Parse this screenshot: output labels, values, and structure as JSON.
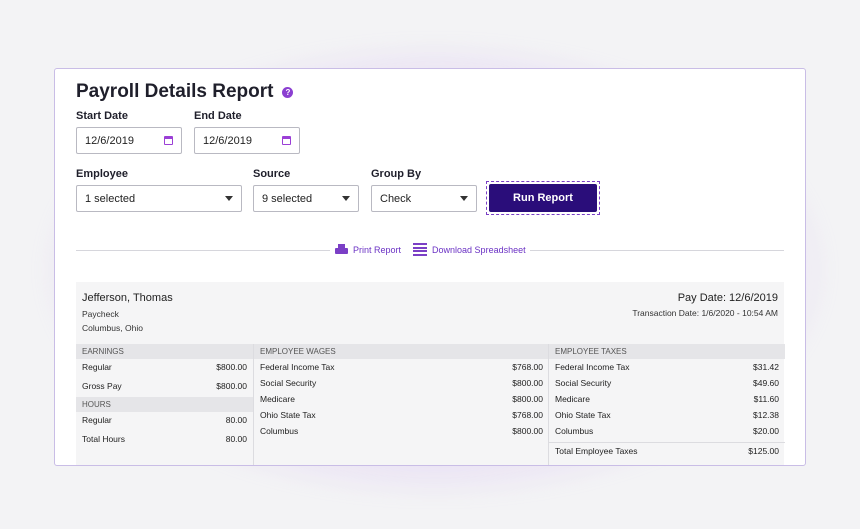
{
  "page": {
    "title": "Payroll Details Report"
  },
  "filters": {
    "start_date": {
      "label": "Start Date",
      "value": "12/6/2019"
    },
    "end_date": {
      "label": "End Date",
      "value": "12/6/2019"
    },
    "employee": {
      "label": "Employee",
      "value": "1 selected"
    },
    "source": {
      "label": "Source",
      "value": "9 selected"
    },
    "group_by": {
      "label": "Group By",
      "value": "Check"
    },
    "run_label": "Run Report"
  },
  "actions": {
    "print": "Print Report",
    "download": "Download Spreadsheet"
  },
  "report": {
    "employee_name": "Jefferson, Thomas",
    "type": "Paycheck",
    "location": "Columbus, Ohio",
    "pay_date": "Pay Date: 12/6/2019",
    "transaction_date": "Transaction Date: 1/6/2020 - 10:54 AM",
    "earnings": {
      "header": "EARNINGS",
      "rows": [
        {
          "label": "Regular",
          "value": "$800.00"
        },
        {
          "label": "Gross Pay",
          "value": "$800.00"
        }
      ]
    },
    "hours": {
      "header": "HOURS",
      "rows": [
        {
          "label": "Regular",
          "value": "80.00"
        },
        {
          "label": "Total Hours",
          "value": "80.00"
        }
      ]
    },
    "wages": {
      "header": "EMPLOYEE WAGES",
      "rows": [
        {
          "label": "Federal Income Tax",
          "value": "$768.00"
        },
        {
          "label": "Social Security",
          "value": "$800.00"
        },
        {
          "label": "Medicare",
          "value": "$800.00"
        },
        {
          "label": "Ohio State Tax",
          "value": "$768.00"
        },
        {
          "label": "Columbus",
          "value": "$800.00"
        }
      ]
    },
    "taxes": {
      "header": "EMPLOYEE TAXES",
      "rows": [
        {
          "label": "Federal Income Tax",
          "value": "$31.42"
        },
        {
          "label": "Social Security",
          "value": "$49.60"
        },
        {
          "label": "Medicare",
          "value": "$11.60"
        },
        {
          "label": "Ohio State Tax",
          "value": "$12.38"
        },
        {
          "label": "Columbus",
          "value": "$20.00"
        }
      ],
      "total": {
        "label": "Total Employee Taxes",
        "value": "$125.00"
      }
    }
  },
  "colors": {
    "accent": "#2a0d7a",
    "link": "#6b32c4",
    "icon": "#9b3fd6"
  },
  "icons": [
    "help-icon",
    "calendar-icon",
    "chevron-down-icon",
    "printer-icon",
    "spreadsheet-icon"
  ]
}
